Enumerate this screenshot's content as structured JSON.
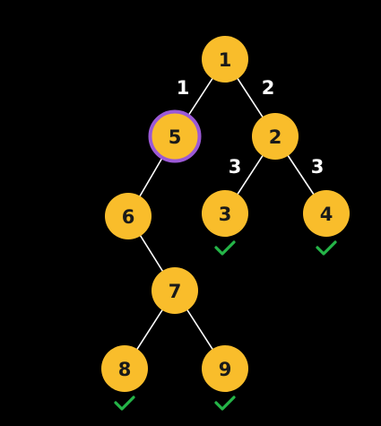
{
  "colors": {
    "background": "#000000",
    "node_fill": "#f9bd2b",
    "node_text": "#1a1a1a",
    "highlight_ring": "#9b59d6",
    "edge": "#ffffff",
    "edge_label": "#ffffff",
    "check": "#25b548"
  },
  "nodes": [
    {
      "id": "1",
      "label": "1"
    },
    {
      "id": "5",
      "label": "5",
      "highlighted": true
    },
    {
      "id": "2",
      "label": "2"
    },
    {
      "id": "6",
      "label": "6"
    },
    {
      "id": "3",
      "label": "3",
      "checked": true
    },
    {
      "id": "4",
      "label": "4",
      "checked": true
    },
    {
      "id": "7",
      "label": "7"
    },
    {
      "id": "8",
      "label": "8",
      "checked": true
    },
    {
      "id": "9",
      "label": "9",
      "checked": true
    }
  ],
  "edges": [
    {
      "from": "1",
      "to": "5",
      "label": "1"
    },
    {
      "from": "1",
      "to": "2",
      "label": "2"
    },
    {
      "from": "5",
      "to": "6",
      "label": ""
    },
    {
      "from": "2",
      "to": "3",
      "label": "3"
    },
    {
      "from": "2",
      "to": "4",
      "label": "3"
    },
    {
      "from": "6",
      "to": "7",
      "label": ""
    },
    {
      "from": "7",
      "to": "8",
      "label": ""
    },
    {
      "from": "7",
      "to": "9",
      "label": ""
    }
  ],
  "check_icon": "checkmark-icon"
}
